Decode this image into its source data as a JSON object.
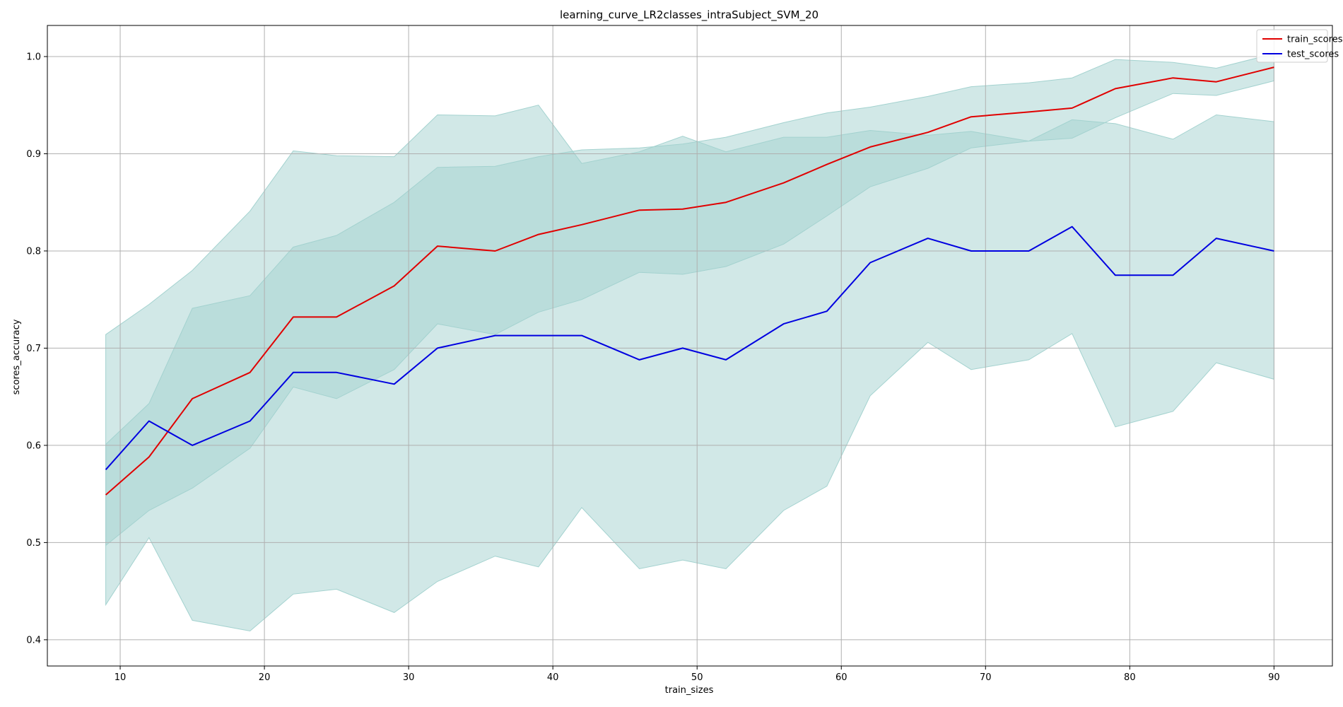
{
  "chart_data": {
    "type": "line",
    "title": "learning_curve_LR2classes_intraSubject_SVM_20",
    "xlabel": "train_sizes",
    "ylabel": "scores_accuracy",
    "xlim": [
      4.95,
      94.05
    ],
    "ylim": [
      0.373,
      1.032
    ],
    "xticks": [
      10,
      20,
      30,
      40,
      50,
      60,
      70,
      80,
      90
    ],
    "yticks": [
      0.4,
      0.5,
      0.6,
      0.7,
      0.8,
      0.9,
      1.0
    ],
    "grid": true,
    "legend_position": "top-right",
    "band_color": "#a3d2cf",
    "x": [
      9,
      12,
      15,
      19,
      22,
      25,
      29,
      32,
      36,
      39,
      42,
      46,
      49,
      52,
      56,
      59,
      62,
      66,
      69,
      73,
      76,
      79,
      83,
      86,
      90
    ],
    "series": [
      {
        "name": "train_scores",
        "color": "#e00000",
        "values": [
          0.549,
          0.588,
          0.648,
          0.675,
          0.732,
          0.732,
          0.764,
          0.805,
          0.8,
          0.817,
          0.827,
          0.842,
          0.843,
          0.85,
          0.87,
          0.889,
          0.907,
          0.922,
          0.938,
          0.943,
          0.947,
          0.967,
          0.978,
          0.974,
          0.989
        ],
        "band_upper": [
          0.601,
          0.643,
          0.741,
          0.754,
          0.804,
          0.816,
          0.85,
          0.886,
          0.887,
          0.897,
          0.904,
          0.906,
          0.91,
          0.917,
          0.932,
          0.942,
          0.948,
          0.959,
          0.969,
          0.973,
          0.978,
          0.997,
          0.994,
          0.988,
          1.003
        ],
        "band_lower": [
          0.497,
          0.533,
          0.556,
          0.597,
          0.66,
          0.648,
          0.678,
          0.725,
          0.714,
          0.737,
          0.75,
          0.778,
          0.776,
          0.784,
          0.807,
          0.836,
          0.866,
          0.885,
          0.906,
          0.913,
          0.916,
          0.937,
          0.962,
          0.96,
          0.975
        ]
      },
      {
        "name": "test_scores",
        "color": "#0000e0",
        "values": [
          0.575,
          0.625,
          0.6,
          0.625,
          0.675,
          0.675,
          0.663,
          0.7,
          0.713,
          0.713,
          0.713,
          0.688,
          0.7,
          0.688,
          0.725,
          0.738,
          0.788,
          0.813,
          0.8,
          0.8,
          0.825,
          0.775,
          0.775,
          0.813,
          0.8
        ],
        "band_upper": [
          0.714,
          0.745,
          0.78,
          0.841,
          0.903,
          0.898,
          0.897,
          0.94,
          0.939,
          0.95,
          0.89,
          0.902,
          0.918,
          0.902,
          0.917,
          0.917,
          0.924,
          0.919,
          0.923,
          0.913,
          0.935,
          0.931,
          0.915,
          0.94,
          0.933
        ],
        "band_lower": [
          0.436,
          0.505,
          0.42,
          0.409,
          0.447,
          0.452,
          0.428,
          0.46,
          0.486,
          0.475,
          0.536,
          0.473,
          0.482,
          0.473,
          0.533,
          0.558,
          0.651,
          0.706,
          0.678,
          0.688,
          0.715,
          0.619,
          0.635,
          0.685,
          0.668
        ]
      }
    ]
  }
}
